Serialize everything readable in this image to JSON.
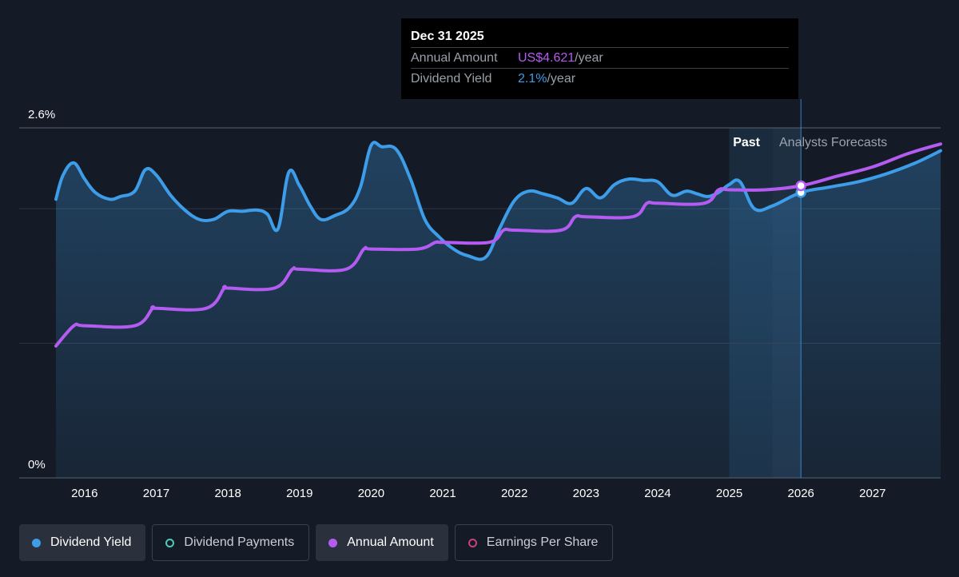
{
  "chart_data": {
    "type": "line",
    "y_axis": {
      "top_label": "2.6%",
      "bottom_label": "0%",
      "ylim": [
        0,
        2.6
      ]
    },
    "x_axis": {
      "ticks": [
        "2016",
        "2017",
        "2018",
        "2019",
        "2020",
        "2021",
        "2022",
        "2023",
        "2024",
        "2025",
        "2026",
        "2027"
      ],
      "xlim": [
        2015.6,
        2027.95
      ]
    },
    "regions": {
      "past_label": "Past",
      "forecast_label": "Analysts Forecasts",
      "past_end": 2025.6,
      "highlight_start": 2025.0,
      "highlight_end": 2026.0
    },
    "grid": true,
    "series": [
      {
        "name": "Dividend Yield",
        "color": "#3d9de8",
        "points": [
          [
            2015.6,
            2.07
          ],
          [
            2015.7,
            2.25
          ],
          [
            2015.85,
            2.34
          ],
          [
            2016.0,
            2.22
          ],
          [
            2016.15,
            2.12
          ],
          [
            2016.35,
            2.07
          ],
          [
            2016.5,
            2.09
          ],
          [
            2016.7,
            2.13
          ],
          [
            2016.85,
            2.29
          ],
          [
            2017.0,
            2.25
          ],
          [
            2017.2,
            2.1
          ],
          [
            2017.4,
            1.99
          ],
          [
            2017.6,
            1.92
          ],
          [
            2017.8,
            1.92
          ],
          [
            2018.0,
            1.98
          ],
          [
            2018.2,
            1.98
          ],
          [
            2018.4,
            1.99
          ],
          [
            2018.55,
            1.96
          ],
          [
            2018.7,
            1.85
          ],
          [
            2018.85,
            2.27
          ],
          [
            2019.0,
            2.17
          ],
          [
            2019.15,
            2.02
          ],
          [
            2019.3,
            1.92
          ],
          [
            2019.5,
            1.95
          ],
          [
            2019.7,
            2.01
          ],
          [
            2019.85,
            2.16
          ],
          [
            2020.0,
            2.47
          ],
          [
            2020.15,
            2.46
          ],
          [
            2020.35,
            2.44
          ],
          [
            2020.55,
            2.22
          ],
          [
            2020.75,
            1.92
          ],
          [
            2020.95,
            1.79
          ],
          [
            2021.15,
            1.7
          ],
          [
            2021.35,
            1.65
          ],
          [
            2021.6,
            1.64
          ],
          [
            2021.8,
            1.86
          ],
          [
            2022.0,
            2.06
          ],
          [
            2022.2,
            2.13
          ],
          [
            2022.4,
            2.11
          ],
          [
            2022.6,
            2.08
          ],
          [
            2022.8,
            2.04
          ],
          [
            2023.0,
            2.15
          ],
          [
            2023.2,
            2.08
          ],
          [
            2023.4,
            2.18
          ],
          [
            2023.6,
            2.22
          ],
          [
            2023.8,
            2.21
          ],
          [
            2024.0,
            2.2
          ],
          [
            2024.2,
            2.1
          ],
          [
            2024.4,
            2.13
          ],
          [
            2024.55,
            2.11
          ],
          [
            2024.7,
            2.09
          ],
          [
            2024.85,
            2.12
          ],
          [
            2025.0,
            2.18
          ],
          [
            2025.15,
            2.2
          ],
          [
            2025.35,
            2.0
          ],
          [
            2025.6,
            2.02
          ],
          [
            2026.0,
            2.12
          ],
          [
            2026.4,
            2.16
          ],
          [
            2026.8,
            2.2
          ],
          [
            2027.2,
            2.26
          ],
          [
            2027.6,
            2.34
          ],
          [
            2027.95,
            2.43
          ]
        ]
      },
      {
        "name": "Annual Amount",
        "color": "#b45cf2",
        "points": [
          [
            2015.6,
            0.98
          ],
          [
            2015.85,
            1.13
          ],
          [
            2016.0,
            1.13
          ],
          [
            2016.7,
            1.13
          ],
          [
            2016.95,
            1.26
          ],
          [
            2017.0,
            1.26
          ],
          [
            2017.7,
            1.26
          ],
          [
            2017.95,
            1.41
          ],
          [
            2018.0,
            1.41
          ],
          [
            2018.65,
            1.41
          ],
          [
            2018.9,
            1.55
          ],
          [
            2019.0,
            1.55
          ],
          [
            2019.65,
            1.55
          ],
          [
            2019.9,
            1.7
          ],
          [
            2020.0,
            1.7
          ],
          [
            2020.65,
            1.7
          ],
          [
            2020.9,
            1.75
          ],
          [
            2021.0,
            1.75
          ],
          [
            2021.65,
            1.75
          ],
          [
            2021.85,
            1.84
          ],
          [
            2022.0,
            1.84
          ],
          [
            2022.65,
            1.84
          ],
          [
            2022.85,
            1.94
          ],
          [
            2023.0,
            1.94
          ],
          [
            2023.65,
            1.94
          ],
          [
            2023.85,
            2.04
          ],
          [
            2024.0,
            2.04
          ],
          [
            2024.65,
            2.04
          ],
          [
            2024.85,
            2.14
          ],
          [
            2025.0,
            2.14
          ],
          [
            2025.5,
            2.14
          ],
          [
            2026.0,
            2.17
          ],
          [
            2026.5,
            2.24
          ],
          [
            2027.0,
            2.31
          ],
          [
            2027.5,
            2.41
          ],
          [
            2027.95,
            2.48
          ]
        ]
      }
    ],
    "highlight": {
      "x": 2026.0,
      "series": [
        "Dividend Yield",
        "Annual Amount"
      ]
    }
  },
  "tooltip": {
    "date": "Dec 31 2025",
    "annual_label": "Annual Amount",
    "annual_value": "US$4.621",
    "annual_unit": "/year",
    "yield_label": "Dividend Yield",
    "yield_value": "2.1%",
    "yield_unit": "/year"
  },
  "legend": [
    {
      "label": "Dividend Yield",
      "state": "active",
      "color": "#3d9de8"
    },
    {
      "label": "Dividend Payments",
      "state": "inactive",
      "color": "#4fc9b8"
    },
    {
      "label": "Annual Amount",
      "state": "active",
      "color": "#b45cf2"
    },
    {
      "label": "Earnings Per Share",
      "state": "inactive",
      "color": "#c9407f"
    }
  ]
}
